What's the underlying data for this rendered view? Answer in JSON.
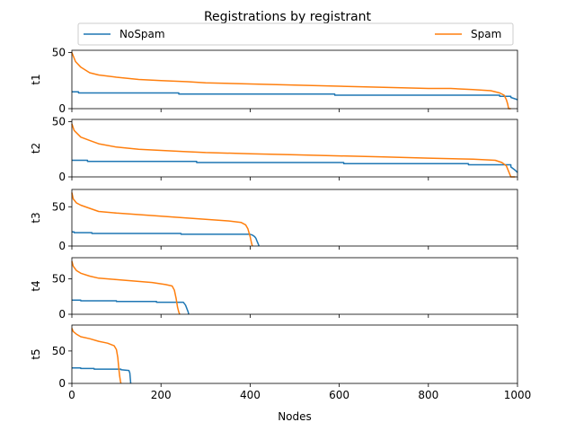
{
  "chart_data": {
    "type": "line",
    "title": "Registrations by registrant",
    "xlabel": "Nodes",
    "xlim": [
      0,
      1000
    ],
    "xticks": [
      0,
      200,
      400,
      600,
      800,
      1000
    ],
    "grid": false,
    "legend_placement": "top, above plots, spanning full width",
    "colors": {
      "NoSpam": "#1f77b4",
      "Spam": "#ff7f0e"
    },
    "series_names": [
      "NoSpam",
      "Spam"
    ],
    "subplots": [
      {
        "ylabel": "t1",
        "ylim": [
          0,
          52
        ],
        "yticks": [
          0,
          50
        ],
        "series": [
          {
            "name": "NoSpam",
            "x": [
              0,
              15,
              15,
              240,
              240,
              590,
              590,
              960,
              960,
              985,
              985,
              1000
            ],
            "y": [
              15,
              15,
              14,
              14,
              13,
              13,
              12,
              12,
              11,
              11,
              10,
              8
            ]
          },
          {
            "name": "Spam",
            "x": [
              0,
              8,
              20,
              40,
              60,
              100,
              150,
              200,
              260,
              300,
              400,
              500,
              600,
              700,
              800,
              850,
              900,
              940,
              960,
              970,
              975,
              978,
              980,
              985
            ],
            "y": [
              50,
              42,
              37,
              32,
              30,
              28,
              26,
              25,
              24,
              23,
              22,
              21,
              20,
              19,
              18,
              18,
              17,
              16,
              14,
              12,
              8,
              4,
              0,
              0
            ]
          }
        ]
      },
      {
        "ylabel": "t2",
        "ylim": [
          0,
          52
        ],
        "yticks": [
          0,
          50
        ],
        "series": [
          {
            "name": "NoSpam",
            "x": [
              0,
              35,
              35,
              280,
              280,
              610,
              610,
              890,
              890,
              985,
              985,
              995,
              1000
            ],
            "y": [
              15,
              15,
              14,
              14,
              13,
              13,
              12,
              12,
              11,
              11,
              9,
              6,
              4
            ]
          },
          {
            "name": "Spam",
            "x": [
              0,
              5,
              20,
              40,
              60,
              100,
              150,
              200,
              250,
              300,
              400,
              500,
              600,
              700,
              800,
              900,
              950,
              965,
              975,
              980,
              985,
              990,
              995
            ],
            "y": [
              48,
              42,
              36,
              33,
              30,
              27,
              25,
              24,
              23,
              22,
              21,
              20,
              19,
              18,
              17,
              16,
              15,
              13,
              10,
              5,
              0,
              0,
              0
            ]
          }
        ]
      },
      {
        "ylabel": "t3",
        "ylim": [
          0,
          72
        ],
        "yticks": [
          0,
          50
        ],
        "series": [
          {
            "name": "NoSpam",
            "x": [
              0,
              5,
              5,
              45,
              45,
              245,
              245,
              400,
              405,
              410,
              413,
              415,
              418,
              420
            ],
            "y": [
              18,
              18,
              17,
              17,
              16,
              16,
              15,
              15,
              14,
              12,
              10,
              7,
              3,
              0
            ]
          },
          {
            "name": "Spam",
            "x": [
              0,
              3,
              10,
              20,
              40,
              60,
              100,
              150,
              200,
              250,
              300,
              350,
              380,
              390,
              395,
              400,
              403,
              405
            ],
            "y": [
              68,
              60,
              55,
              52,
              48,
              44,
              42,
              40,
              38,
              36,
              34,
              32,
              30,
              27,
              22,
              12,
              4,
              0
            ]
          }
        ]
      },
      {
        "ylabel": "t4",
        "ylim": [
          0,
          80
        ],
        "yticks": [
          0,
          50
        ],
        "series": [
          {
            "name": "NoSpam",
            "x": [
              0,
              20,
              20,
              100,
              100,
              190,
              190,
              250,
              255,
              258,
              261,
              262
            ],
            "y": [
              20,
              20,
              19,
              19,
              18,
              18,
              17,
              17,
              13,
              8,
              3,
              0
            ]
          },
          {
            "name": "Spam",
            "x": [
              0,
              3,
              10,
              20,
              40,
              60,
              100,
              140,
              180,
              210,
              225,
              230,
              234,
              237,
              240,
              242
            ],
            "y": [
              75,
              68,
              62,
              58,
              54,
              51,
              49,
              47,
              45,
              42,
              40,
              34,
              22,
              10,
              3,
              0
            ]
          }
        ]
      },
      {
        "ylabel": "t5",
        "ylim": [
          0,
          90
        ],
        "yticks": [
          0,
          50
        ],
        "series": [
          {
            "name": "NoSpam",
            "x": [
              0,
              20,
              20,
              50,
              50,
              110,
              110,
              128,
              130,
              131,
              132
            ],
            "y": [
              24,
              24,
              23,
              23,
              22,
              22,
              21,
              20,
              16,
              8,
              0
            ]
          },
          {
            "name": "Spam",
            "x": [
              0,
              3,
              10,
              20,
              40,
              60,
              80,
              95,
              100,
              103,
              105,
              107,
              109,
              110
            ],
            "y": [
              85,
              80,
              76,
              72,
              69,
              65,
              62,
              58,
              52,
              40,
              25,
              12,
              3,
              0
            ]
          }
        ]
      }
    ]
  }
}
